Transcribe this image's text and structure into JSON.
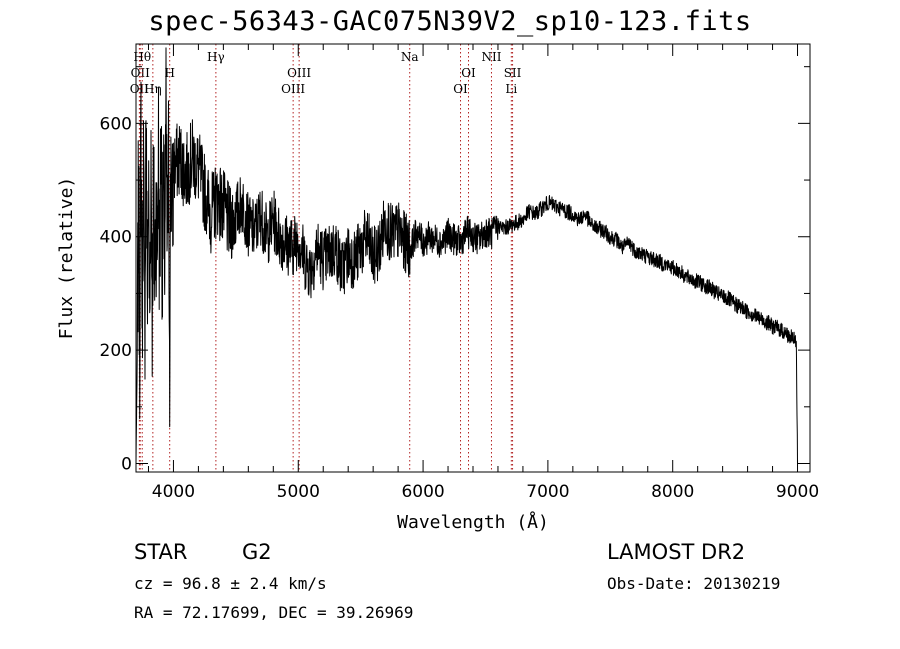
{
  "chart_data": {
    "type": "line",
    "title": "spec-56343-GAC075N39V2_sp10-123.fits",
    "xlabel": "Wavelength (Å)",
    "ylabel": "Flux (relative)",
    "xlim": [
      3700,
      9100
    ],
    "ylim": [
      -15,
      740
    ],
    "x_ticks": [
      4000,
      5000,
      6000,
      7000,
      8000,
      9000
    ],
    "y_ticks": [
      0,
      200,
      400,
      600
    ],
    "x_tick_labels": [
      "4000",
      "5000",
      "6000",
      "7000",
      "8000",
      "9000"
    ],
    "y_tick_labels": [
      "0",
      "200",
      "400",
      "600"
    ],
    "grid": false,
    "series": [
      {
        "x": [
          3700,
          3710,
          3720,
          3730,
          3740,
          3750,
          3760,
          3770,
          3780,
          3790,
          3800,
          3810,
          3820,
          3830,
          3840,
          3850,
          3860,
          3870,
          3880,
          3890,
          3900,
          3910,
          3920,
          3930,
          3940,
          3950,
          3960,
          3970,
          3980,
          3990,
          4000,
          4050,
          4100,
          4150,
          4200,
          4250,
          4300,
          4350,
          4400,
          4450,
          4500,
          4550,
          4600,
          4650,
          4700,
          4750,
          4800,
          4850,
          4900,
          4950,
          5000,
          5050,
          5100,
          5150,
          5200,
          5250,
          5300,
          5350,
          5400,
          5450,
          5500,
          5550,
          5600,
          5650,
          5700,
          5750,
          5800,
          5850,
          5900,
          5950,
          6000,
          6050,
          6100,
          6150,
          6200,
          6250,
          6300,
          6350,
          6400,
          6450,
          6500,
          6550,
          6600,
          6650,
          6700,
          6750,
          6800,
          6850,
          6900,
          6950,
          7000,
          7050,
          7100,
          7150,
          7200,
          7250,
          7300,
          7350,
          7400,
          7450,
          7500,
          7550,
          7600,
          7650,
          7700,
          7750,
          7800,
          7850,
          7900,
          7950,
          8000,
          8050,
          8100,
          8150,
          8200,
          8250,
          8300,
          8350,
          8400,
          8450,
          8500,
          8550,
          8600,
          8650,
          8700,
          8750,
          8800,
          8850,
          8900,
          8950,
          8990,
          9000
        ],
        "y": [
          0,
          180,
          480,
          220,
          600,
          260,
          540,
          200,
          640,
          300,
          480,
          240,
          560,
          280,
          500,
          320,
          460,
          380,
          560,
          300,
          620,
          350,
          480,
          380,
          600,
          360,
          520,
          200,
          560,
          420,
          520,
          540,
          510,
          540,
          520,
          480,
          440,
          470,
          450,
          420,
          440,
          460,
          420,
          410,
          440,
          400,
          430,
          400,
          390,
          380,
          400,
          360,
          340,
          380,
          360,
          370,
          380,
          340,
          370,
          360,
          380,
          400,
          360,
          380,
          430,
          400,
          410,
          390,
          380,
          410,
          390,
          400,
          395,
          390,
          405,
          395,
          390,
          410,
          400,
          395,
          410,
          405,
          420,
          415,
          420,
          425,
          430,
          445,
          440,
          450,
          460,
          455,
          450,
          445,
          440,
          430,
          440,
          420,
          415,
          410,
          400,
          395,
          380,
          390,
          375,
          370,
          365,
          360,
          355,
          350,
          345,
          340,
          330,
          325,
          320,
          315,
          310,
          300,
          295,
          290,
          280,
          275,
          268,
          262,
          255,
          250,
          242,
          238,
          230,
          222,
          215,
          0
        ]
      }
    ],
    "line_markers": [
      {
        "x": 3727,
        "label": "OII",
        "row": 2
      },
      {
        "x": 3734,
        "label": "OII",
        "row": 1
      },
      {
        "x": 3750,
        "label": "Hθ",
        "row": 0
      },
      {
        "x": 3835,
        "label": "Hη",
        "row": 2
      },
      {
        "x": 3970,
        "label": "H",
        "row": 1
      },
      {
        "x": 4340,
        "label": "Hγ",
        "row": 0
      },
      {
        "x": 4959,
        "label": "OIII",
        "row": 2
      },
      {
        "x": 5007,
        "label": "OIII",
        "row": 1
      },
      {
        "x": 5893,
        "label": "Na",
        "row": 0
      },
      {
        "x": 6300,
        "label": "OI",
        "row": 2
      },
      {
        "x": 6364,
        "label": "OI",
        "row": 1
      },
      {
        "x": 6548,
        "label": "NII",
        "row": 0
      },
      {
        "x": 6707,
        "label": "Li",
        "row": 2
      },
      {
        "x": 6717,
        "label": "SII",
        "row": 1
      }
    ]
  },
  "info": {
    "object_type": "STAR",
    "subclass": "G2",
    "survey": "LAMOST DR2",
    "redshift": "cz = 96.8 ± 2.4 km/s",
    "obs_date": "Obs-Date: 20130219",
    "coords": "RA =  72.17699, DEC =  39.26969"
  },
  "colors": {
    "spectrum": "#000000",
    "marker_line": "#b22222",
    "axis": "#000000"
  }
}
